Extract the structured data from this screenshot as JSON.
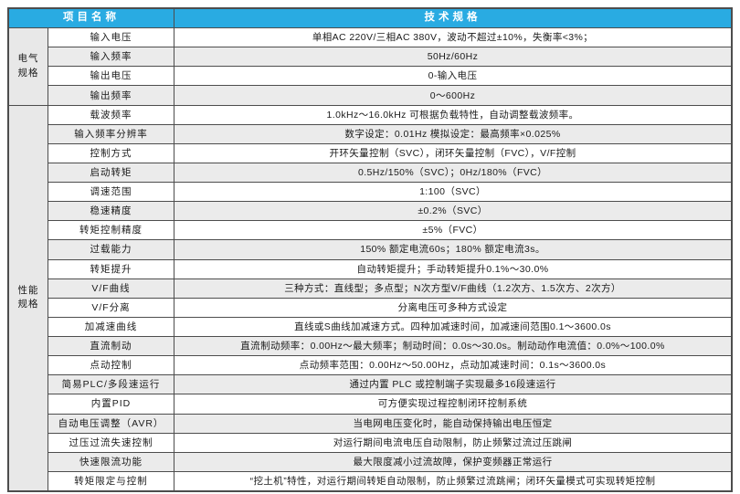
{
  "colors": {
    "header_bg": "#29ABE2",
    "header_text": "#FFFFFF",
    "row_shaded_bg": "#EBEBEB",
    "group_bg": "#E8E8E8",
    "border": "#4D4D4D",
    "text": "#1A1A1A"
  },
  "table": {
    "header": {
      "project_col": "项目名称",
      "spec_col": "技术规格"
    },
    "groups": [
      {
        "name": "电气规格",
        "label_lines": [
          "电气",
          "规格"
        ],
        "rows": [
          {
            "item": "输入电压",
            "spec": "单相AC 220V/三相AC 380V，波动不超过±10%，失衡率<3%；",
            "shaded": false
          },
          {
            "item": "输入频率",
            "spec": "50Hz/60Hz",
            "shaded": true
          },
          {
            "item": "输出电压",
            "spec": "0-输入电压",
            "shaded": false
          },
          {
            "item": "输出频率",
            "spec": "0～600Hz",
            "shaded": true
          }
        ]
      },
      {
        "name": "性能规格",
        "label_lines": [
          "性能",
          "规格"
        ],
        "rows": [
          {
            "item": "载波频率",
            "spec": "1.0kHz～16.0kHz 可根据负载特性，自动调整载波频率。",
            "shaded": false
          },
          {
            "item": "输入频率分辨率",
            "spec": "数字设定：0.01Hz 模拟设定：最高频率×0.025%",
            "shaded": true
          },
          {
            "item": "控制方式",
            "spec": "开环矢量控制（SVC），闭环矢量控制（FVC），V/F控制",
            "shaded": false
          },
          {
            "item": "启动转矩",
            "spec": "0.5Hz/150%（SVC）；0Hz/180%（FVC）",
            "shaded": true
          },
          {
            "item": "调速范围",
            "spec": "1:100（SVC）",
            "shaded": false
          },
          {
            "item": "稳速精度",
            "spec": "±0.2%（SVC）",
            "shaded": true
          },
          {
            "item": "转矩控制精度",
            "spec": "±5%（FVC）",
            "shaded": false
          },
          {
            "item": "过载能力",
            "spec": "150% 额定电流60s；180% 额定电流3s。",
            "shaded": true
          },
          {
            "item": "转矩提升",
            "spec": "自动转矩提升；手动转矩提升0.1%～30.0%",
            "shaded": false
          },
          {
            "item": "V/F曲线",
            "spec": "三种方式：直线型；多点型；N次方型V/F曲线（1.2次方、1.5次方、2次方）",
            "shaded": true
          },
          {
            "item": "V/F分离",
            "spec": "分离电压可多种方式设定",
            "shaded": false
          },
          {
            "item": "加减速曲线",
            "spec": "直线或S曲线加减速方式。四种加减速时间，加减速间范围0.1～3600.0s",
            "shaded": false
          },
          {
            "item": "直流制动",
            "spec": "直流制动频率：0.00Hz～最大频率；制动时间：0.0s～30.0s。制动动作电流值：0.0%～100.0%",
            "shaded": true
          },
          {
            "item": "点动控制",
            "spec": "点动频率范围：0.00Hz～50.00Hz，点动加减速时间：0.1s～3600.0s",
            "shaded": false
          },
          {
            "item": "简易PLC/多段速运行",
            "spec": "通过内置 PLC 或控制端子实现最多16段速运行",
            "shaded": true
          },
          {
            "item": "内置PID",
            "spec": "可方便实现过程控制闭环控制系统",
            "shaded": false
          },
          {
            "item": "自动电压调整（AVR）",
            "spec": "当电网电压变化时，能自动保持输出电压恒定",
            "shaded": true
          },
          {
            "item": "过压过流失速控制",
            "spec": "对运行期间电流电压自动限制，防止频繁过流过压跳闸",
            "shaded": false
          },
          {
            "item": "快速限流功能",
            "spec": "最大限度减小过流故障，保护变频器正常运行",
            "shaded": true
          },
          {
            "item": "转矩限定与控制",
            "spec": "“挖土机”特性，对运行期间转矩自动限制，防止频繁过流跳闸；闭环矢量模式可实现转矩控制",
            "shaded": false
          }
        ]
      }
    ]
  }
}
